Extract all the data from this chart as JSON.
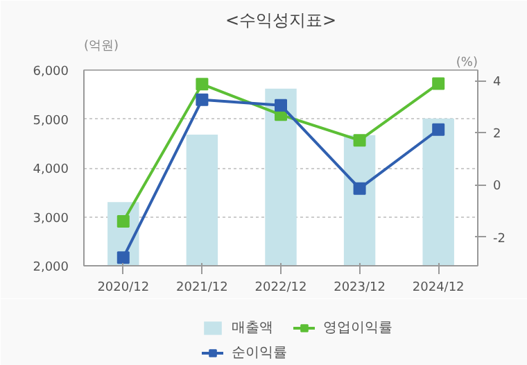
{
  "chart_data": {
    "type": "bar",
    "title": "<수익성지표>",
    "ylabel": "(억원)",
    "y2label": "(%)",
    "categories": [
      "2020/12",
      "2021/12",
      "2022/12",
      "2023/12",
      "2024/12"
    ],
    "series": [
      {
        "name": "매출액",
        "color": "#c5e3ea",
        "values": [
          3300,
          4680,
          5620,
          4670,
          5010
        ]
      },
      {
        "name": "영업이익률",
        "type": "line",
        "axis": "y2",
        "color": "#5cbf35",
        "values": [
          -1.4,
          3.86,
          2.69,
          1.71,
          3.88
        ]
      },
      {
        "name": "순이익률",
        "type": "line",
        "axis": "y2",
        "color": "#3060b0",
        "values": [
          -2.79,
          3.26,
          3.05,
          -0.14,
          2.12
        ]
      }
    ],
    "ylim": [
      2000,
      6000
    ],
    "yticks": [
      {
        "value": 2000,
        "label": "2,000"
      },
      {
        "value": 3000,
        "label": "3,000"
      },
      {
        "value": 4000,
        "label": "4,000"
      },
      {
        "value": 5000,
        "label": "5,000"
      },
      {
        "value": 6000,
        "label": "6,000"
      }
    ],
    "y2lim": [
      -3.1,
      4.4
    ],
    "y2ticks": [
      -2,
      0,
      2,
      4
    ],
    "grid": "y",
    "legend": "bottom",
    "marker": "square",
    "line_style": "solid"
  }
}
